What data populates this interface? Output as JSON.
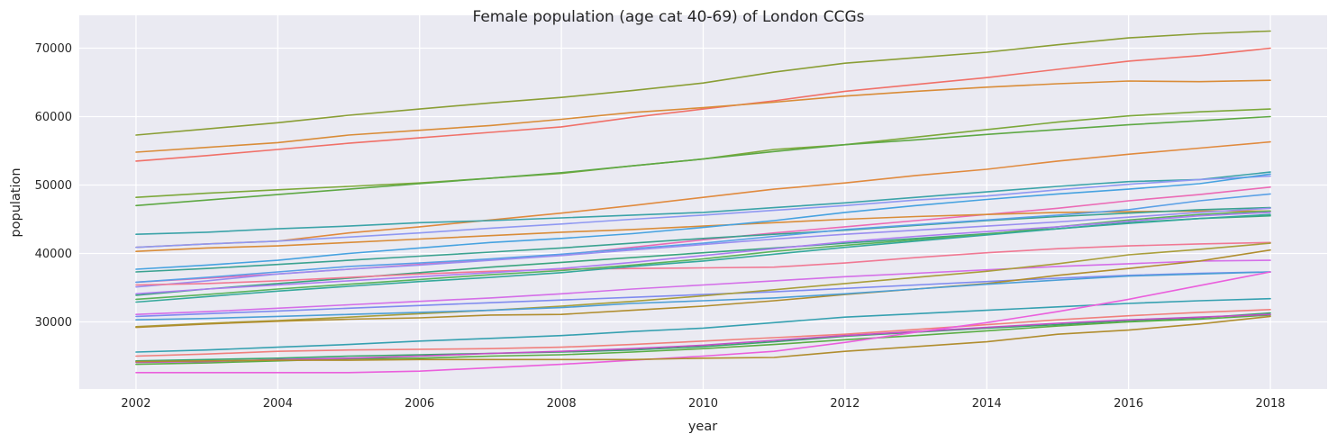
{
  "chart_data": {
    "type": "line",
    "title": "Female population (age cat 40-69) of London CCGs",
    "xlabel": "year",
    "ylabel": "population",
    "xlim": [
      2001.2,
      2018.8
    ],
    "ylim": [
      20200,
      74800
    ],
    "x_ticks": [
      2002,
      2004,
      2006,
      2008,
      2010,
      2012,
      2014,
      2016,
      2018
    ],
    "y_ticks": [
      30000,
      40000,
      50000,
      60000,
      70000
    ],
    "grid": true,
    "legend": "none",
    "background": "#eaeaf2",
    "x": [
      2002,
      2003,
      2004,
      2005,
      2006,
      2007,
      2008,
      2009,
      2010,
      2011,
      2012,
      2013,
      2014,
      2015,
      2016,
      2017,
      2018
    ],
    "series": [
      {
        "color": "#8a9e35",
        "values": [
          57300,
          58200,
          59100,
          60200,
          61100,
          62000,
          62800,
          63800,
          64900,
          66500,
          67800,
          68600,
          69400,
          70500,
          71500,
          72100,
          72500
        ]
      },
      {
        "color": "#f07068",
        "values": [
          53500,
          54300,
          55200,
          56100,
          56900,
          57700,
          58500,
          59900,
          61100,
          62300,
          63700,
          64700,
          65700,
          66900,
          68100,
          68900,
          70000
        ]
      },
      {
        "color": "#d98c38",
        "values": [
          54800,
          55500,
          56200,
          57300,
          58000,
          58700,
          59600,
          60600,
          61300,
          62100,
          63000,
          63700,
          64300,
          64800,
          65200,
          65100,
          65300
        ]
      },
      {
        "color": "#7ca83a",
        "values": [
          48200,
          48800,
          49300,
          49800,
          50300,
          51000,
          51700,
          52800,
          53800,
          55200,
          55900,
          57000,
          58100,
          59200,
          60100,
          60700,
          61100
        ]
      },
      {
        "color": "#5ea844",
        "values": [
          47000,
          47800,
          48600,
          49400,
          50200,
          51000,
          51800,
          52800,
          53800,
          54900,
          55900,
          56600,
          57400,
          58100,
          58800,
          59400,
          60000
        ]
      },
      {
        "color": "#e08a3e",
        "values": [
          40900,
          41400,
          41800,
          43000,
          43900,
          44900,
          45900,
          47000,
          48200,
          49400,
          50300,
          51400,
          52300,
          53500,
          54500,
          55400,
          56300
        ]
      },
      {
        "color": "#3ba3a8",
        "values": [
          42800,
          43100,
          43600,
          44000,
          44500,
          44800,
          45200,
          45600,
          46000,
          46700,
          47400,
          48200,
          49000,
          49800,
          50500,
          50800,
          51900
        ]
      },
      {
        "color": "#8f98f2",
        "values": [
          40900,
          41400,
          41800,
          42400,
          43000,
          43700,
          44300,
          45000,
          45600,
          46300,
          47000,
          47800,
          48400,
          49300,
          50100,
          50800,
          51300
        ]
      },
      {
        "color": "#eb6ab5",
        "values": [
          35800,
          36400,
          37000,
          37700,
          38400,
          39100,
          39800,
          40900,
          42000,
          43000,
          43900,
          44800,
          45700,
          46600,
          47700,
          48600,
          49700
        ]
      },
      {
        "color": "#d98c38",
        "values": [
          40300,
          40800,
          41100,
          41600,
          42100,
          42600,
          43100,
          43500,
          44000,
          44500,
          45000,
          45400,
          45700,
          46000,
          46100,
          46200,
          46200
        ]
      },
      {
        "color": "#46a2e0",
        "values": [
          37700,
          38300,
          39000,
          40000,
          40800,
          41600,
          42200,
          42900,
          43800,
          44800,
          46000,
          47000,
          47900,
          48700,
          49400,
          50200,
          51600
        ]
      },
      {
        "color": "#3aa290",
        "values": [
          37300,
          37800,
          38400,
          39000,
          39600,
          40200,
          40800,
          41500,
          42200,
          42800,
          43400,
          44100,
          44800,
          45400,
          45900,
          46400,
          46700
        ]
      },
      {
        "color": "#5aa0e6",
        "values": [
          35800,
          36500,
          37300,
          38100,
          38600,
          39200,
          39900,
          40700,
          41500,
          42500,
          43500,
          44200,
          44900,
          45600,
          46400,
          47700,
          48700
        ]
      },
      {
        "color": "#9a8ef0",
        "values": [
          35100,
          36000,
          37000,
          37700,
          38300,
          39000,
          39700,
          40500,
          41300,
          42100,
          42800,
          43400,
          44000,
          44600,
          45300,
          46000,
          46600
        ]
      },
      {
        "color": "#3aa57e",
        "values": [
          33900,
          34800,
          35600,
          36400,
          37200,
          38000,
          38700,
          39400,
          40100,
          40800,
          41500,
          42200,
          42900,
          43600,
          44500,
          45100,
          45500
        ]
      },
      {
        "color": "#f07893",
        "values": [
          35400,
          35600,
          36000,
          36500,
          37000,
          37400,
          37700,
          37800,
          37900,
          38000,
          38600,
          39400,
          40100,
          40700,
          41100,
          41400,
          41600
        ]
      },
      {
        "color": "#5ab35a",
        "values": [
          33300,
          34000,
          34800,
          35500,
          36200,
          36900,
          37500,
          38300,
          39200,
          40300,
          41200,
          42000,
          42800,
          43900,
          44900,
          45700,
          46200
        ]
      },
      {
        "color": "#ab7cf0",
        "values": [
          34100,
          34800,
          35400,
          36000,
          36600,
          37200,
          37800,
          38700,
          39700,
          40700,
          41700,
          42500,
          43200,
          43900,
          44700,
          45500,
          46000
        ]
      },
      {
        "color": "#35a89c",
        "values": [
          32900,
          33700,
          34500,
          35200,
          35900,
          36500,
          37200,
          38100,
          38900,
          39900,
          40900,
          41800,
          42700,
          43600,
          44400,
          45100,
          45700
        ]
      },
      {
        "color": "#d46ee8",
        "values": [
          31100,
          31500,
          32000,
          32500,
          33000,
          33500,
          34100,
          34800,
          35400,
          36000,
          36600,
          37100,
          37600,
          38100,
          38500,
          38900,
          39000
        ]
      },
      {
        "color": "#7f8bef",
        "values": [
          30800,
          31200,
          31600,
          32000,
          32400,
          32800,
          33200,
          33600,
          34000,
          34400,
          34900,
          35400,
          35900,
          36400,
          36800,
          37100,
          37300
        ]
      },
      {
        "color": "#a99e3a",
        "values": [
          29300,
          29800,
          30200,
          30700,
          31200,
          31700,
          32300,
          33000,
          33800,
          34700,
          35600,
          36500,
          37400,
          38500,
          39800,
          40600,
          41500
        ]
      },
      {
        "color": "#b08d2e",
        "values": [
          29200,
          29700,
          30100,
          30400,
          30600,
          31000,
          31100,
          31700,
          32300,
          33100,
          34000,
          34800,
          35600,
          36800,
          37800,
          38900,
          40500
        ]
      },
      {
        "color": "#4d9fd6",
        "values": [
          30300,
          30500,
          30800,
          31100,
          31400,
          31700,
          32100,
          32700,
          33100,
          33500,
          34100,
          34800,
          35500,
          36100,
          36700,
          37000,
          37300
        ]
      },
      {
        "color": "#35a0b0",
        "values": [
          25600,
          25900,
          26300,
          26700,
          27200,
          27600,
          28000,
          28600,
          29100,
          29900,
          30700,
          31200,
          31700,
          32200,
          32700,
          33100,
          33400
        ]
      },
      {
        "color": "#f07f7c",
        "values": [
          25000,
          25300,
          25700,
          25900,
          26000,
          26100,
          26300,
          26700,
          27200,
          27700,
          28200,
          28900,
          29600,
          30300,
          30900,
          31400,
          31800
        ]
      },
      {
        "color": "#3aa56c",
        "values": [
          24300,
          24500,
          24700,
          25000,
          25200,
          25400,
          25600,
          25900,
          26400,
          27100,
          27900,
          28500,
          29100,
          29600,
          30200,
          30600,
          31300
        ]
      },
      {
        "color": "#5aad44",
        "values": [
          23800,
          24000,
          24300,
          24600,
          24700,
          25000,
          25200,
          25600,
          26100,
          26700,
          27400,
          28000,
          28700,
          29400,
          30000,
          30400,
          31000
        ]
      },
      {
        "color": "#c24fc6",
        "values": [
          24100,
          24200,
          24500,
          24700,
          25000,
          25400,
          25700,
          26100,
          26600,
          27300,
          28000,
          28600,
          29200,
          29800,
          30300,
          30700,
          31100
        ]
      },
      {
        "color": "#ea5fdc",
        "values": [
          22600,
          22600,
          22600,
          22600,
          22800,
          23300,
          23800,
          24400,
          25000,
          25700,
          27000,
          28500,
          29900,
          31500,
          33300,
          35300,
          37300
        ]
      },
      {
        "color": "#b08d2e",
        "values": [
          24200,
          24300,
          24400,
          24400,
          24500,
          24500,
          24500,
          24500,
          24700,
          24800,
          25700,
          26400,
          27100,
          28200,
          28800,
          29700,
          30800
        ]
      }
    ]
  }
}
